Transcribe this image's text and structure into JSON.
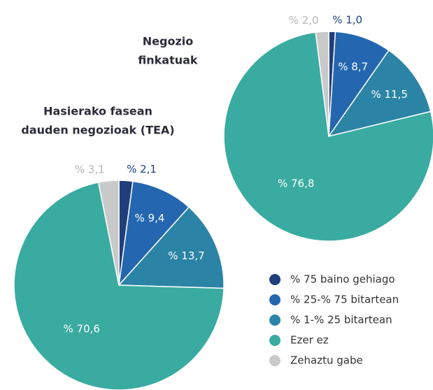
{
  "chart_data": [
    {
      "type": "pie",
      "title": [
        "Hasierako fasean",
        "dauden negozioak (TEA)"
      ],
      "categories": [
        "% 75 baino gehiago",
        "% 25-% 75 bitartean",
        "% 1-% 25 bitartean",
        "Ezer ez",
        "Zehaztu gabe"
      ],
      "values": [
        2.1,
        9.4,
        13.7,
        70.6,
        3.1
      ],
      "value_labels": [
        "% 2,1",
        "% 9,4",
        "% 13,7",
        "% 70,6",
        "% 3,1"
      ],
      "colors": [
        "#1f3f7a",
        "#2467b0",
        "#2b84a6",
        "#3aaba1",
        "#c9c9c9"
      ]
    },
    {
      "type": "pie",
      "title": [
        "Negozio",
        "finkatuak"
      ],
      "categories": [
        "% 75 baino gehiago",
        "% 25-% 75 bitartean",
        "% 1-% 25 bitartean",
        "Ezer ez",
        "Zehaztu gabe"
      ],
      "values": [
        1.0,
        8.7,
        11.5,
        76.8,
        2.0
      ],
      "value_labels": [
        "% 1,0",
        "% 8,7",
        "% 11,5",
        "% 76,8",
        "% 2,0"
      ],
      "colors": [
        "#1f3f7a",
        "#2467b0",
        "#2b84a6",
        "#3aaba1",
        "#c9c9c9"
      ]
    }
  ]
}
